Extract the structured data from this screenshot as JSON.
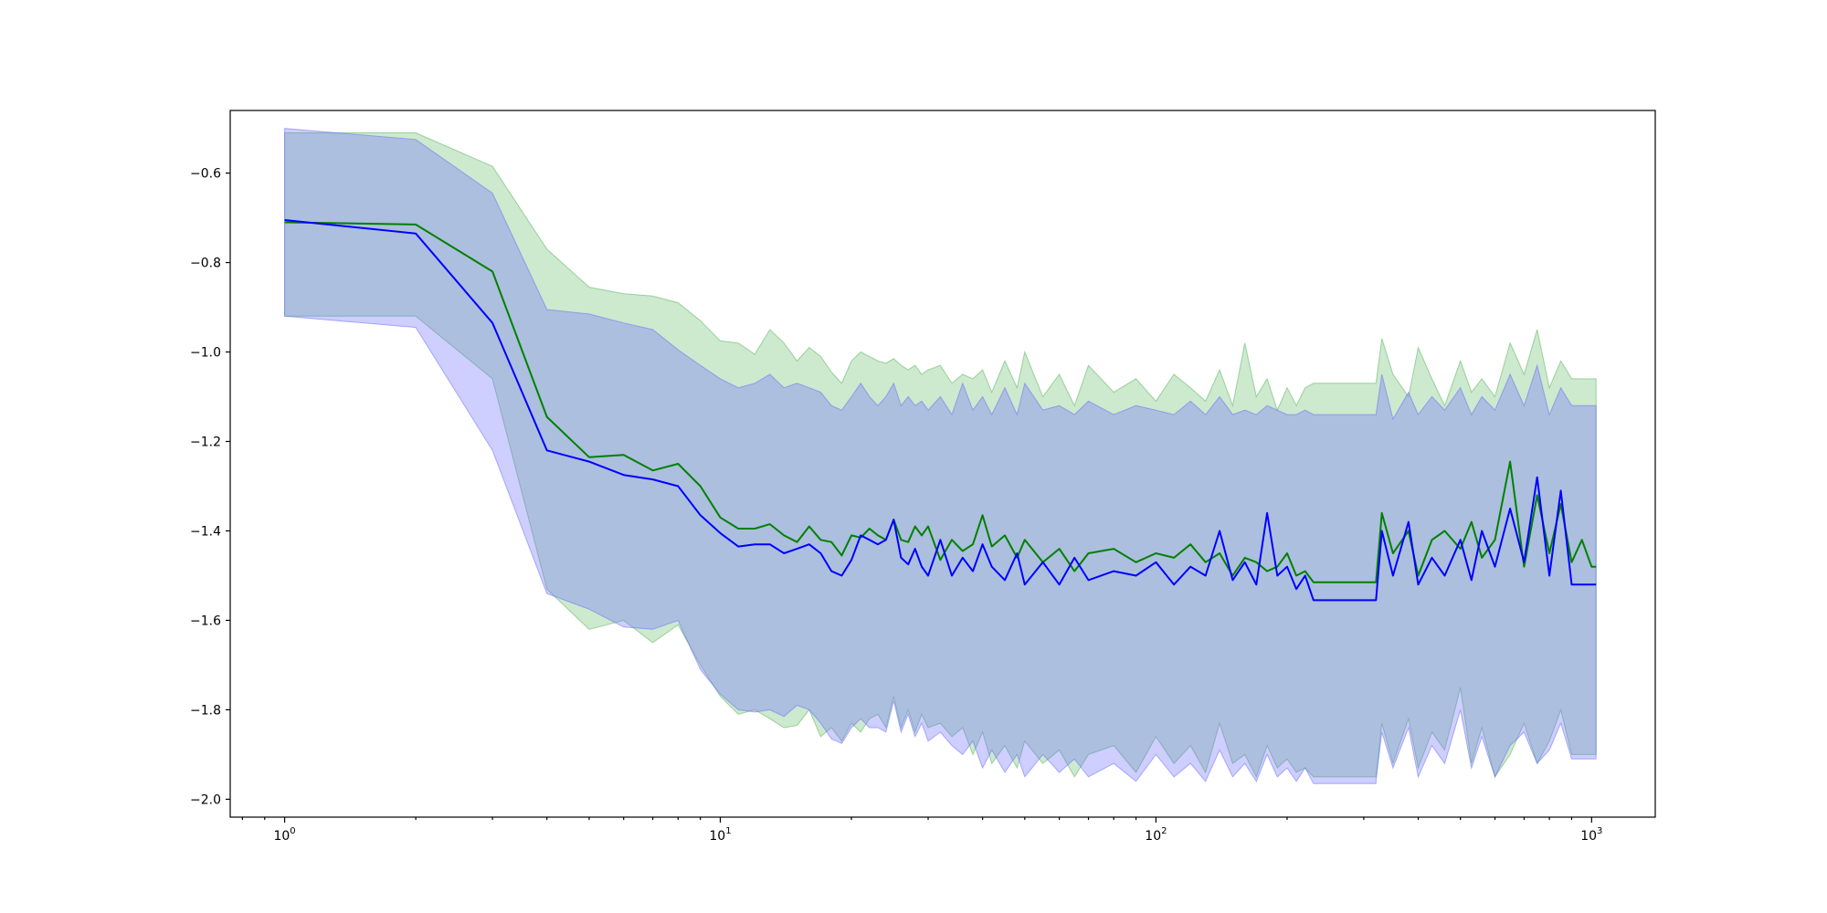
{
  "chart_data": {
    "type": "line",
    "title": "",
    "xlabel": "",
    "ylabel": "",
    "xscale": "log",
    "xlim": [
      0.75,
      1400
    ],
    "ylim": [
      -2.04,
      -0.46
    ],
    "grid": false,
    "legend": "none",
    "x_ticks": [
      {
        "value": 1,
        "base": "10",
        "exp": "0"
      },
      {
        "value": 10,
        "base": "10",
        "exp": "1"
      },
      {
        "value": 100,
        "base": "10",
        "exp": "2"
      },
      {
        "value": 1000,
        "base": "10",
        "exp": "3"
      }
    ],
    "y_ticks": [
      {
        "value": -0.6,
        "label": "−0.6"
      },
      {
        "value": -0.8,
        "label": "−0.8"
      },
      {
        "value": -1.0,
        "label": "−1.0"
      },
      {
        "value": -1.2,
        "label": "−1.2"
      },
      {
        "value": -1.4,
        "label": "−1.4"
      },
      {
        "value": -1.6,
        "label": "−1.6"
      },
      {
        "value": -1.8,
        "label": "−1.8"
      },
      {
        "value": -2.0,
        "label": "−2.0"
      }
    ],
    "series": [
      {
        "color": "#008000",
        "band_color": "#4caf50",
        "band_opacity": 0.28,
        "gap": [
          230,
          320
        ],
        "x": [
          1,
          2,
          3,
          4,
          5,
          6,
          7,
          8,
          9,
          10,
          11,
          12,
          13,
          14,
          15,
          16,
          17,
          18,
          19,
          20,
          21,
          22,
          23,
          24,
          25,
          26,
          27,
          28,
          29,
          30,
          32,
          34,
          36,
          38,
          40,
          42,
          45,
          48,
          50,
          55,
          60,
          65,
          70,
          80,
          90,
          100,
          110,
          120,
          130,
          140,
          150,
          160,
          170,
          180,
          190,
          200,
          210,
          220,
          230,
          320,
          330,
          350,
          380,
          400,
          430,
          460,
          500,
          530,
          560,
          600,
          650,
          700,
          750,
          800,
          850,
          900,
          950,
          1000,
          1024
        ],
        "mean": [
          -0.71,
          -0.715,
          -0.82,
          -1.145,
          -1.235,
          -1.23,
          -1.265,
          -1.25,
          -1.3,
          -1.37,
          -1.395,
          -1.395,
          -1.385,
          -1.41,
          -1.425,
          -1.39,
          -1.42,
          -1.425,
          -1.455,
          -1.41,
          -1.415,
          -1.395,
          -1.41,
          -1.42,
          -1.375,
          -1.42,
          -1.425,
          -1.39,
          -1.41,
          -1.39,
          -1.465,
          -1.42,
          -1.445,
          -1.43,
          -1.365,
          -1.435,
          -1.41,
          -1.46,
          -1.42,
          -1.47,
          -1.44,
          -1.49,
          -1.45,
          -1.44,
          -1.47,
          -1.45,
          -1.46,
          -1.43,
          -1.47,
          -1.45,
          -1.5,
          -1.46,
          -1.47,
          -1.49,
          -1.48,
          -1.45,
          -1.5,
          -1.49,
          -1.515,
          -1.515,
          -1.36,
          -1.45,
          -1.4,
          -1.5,
          -1.42,
          -1.4,
          -1.44,
          -1.38,
          -1.46,
          -1.42,
          -1.245,
          -1.48,
          -1.32,
          -1.45,
          -1.34,
          -1.47,
          -1.42,
          -1.48,
          -1.48
        ],
        "upper": [
          -0.51,
          -0.51,
          -0.585,
          -0.77,
          -0.855,
          -0.87,
          -0.875,
          -0.89,
          -0.93,
          -0.975,
          -0.98,
          -1.005,
          -0.95,
          -0.98,
          -1.02,
          -0.99,
          -1.01,
          -1.045,
          -1.07,
          -1.02,
          -1.0,
          -1.01,
          -1.02,
          -1.025,
          -1.015,
          -1.03,
          -1.04,
          -1.03,
          -1.05,
          -1.04,
          -1.03,
          -1.07,
          -1.05,
          -1.06,
          -1.04,
          -1.09,
          -1.02,
          -1.08,
          -1.0,
          -1.1,
          -1.05,
          -1.12,
          -1.03,
          -1.09,
          -1.06,
          -1.11,
          -1.05,
          -1.08,
          -1.11,
          -1.04,
          -1.12,
          -0.98,
          -1.1,
          -1.06,
          -1.13,
          -1.08,
          -1.12,
          -1.08,
          -1.07,
          -1.07,
          -0.97,
          -1.05,
          -1.1,
          -0.99,
          -1.06,
          -1.12,
          -1.02,
          -1.09,
          -1.06,
          -1.1,
          -0.98,
          -1.05,
          -0.95,
          -1.08,
          -1.02,
          -1.06,
          -1.06,
          -1.06,
          -1.06
        ],
        "lower": [
          -0.92,
          -0.92,
          -1.06,
          -1.53,
          -1.62,
          -1.6,
          -1.65,
          -1.61,
          -1.7,
          -1.77,
          -1.81,
          -1.8,
          -1.82,
          -1.84,
          -1.835,
          -1.8,
          -1.86,
          -1.84,
          -1.87,
          -1.83,
          -1.85,
          -1.82,
          -1.81,
          -1.84,
          -1.77,
          -1.84,
          -1.8,
          -1.85,
          -1.81,
          -1.84,
          -1.83,
          -1.86,
          -1.84,
          -1.9,
          -1.85,
          -1.92,
          -1.88,
          -1.93,
          -1.87,
          -1.92,
          -1.89,
          -1.95,
          -1.9,
          -1.88,
          -1.94,
          -1.86,
          -1.92,
          -1.88,
          -1.94,
          -1.83,
          -1.92,
          -1.9,
          -1.95,
          -1.88,
          -1.93,
          -1.91,
          -1.94,
          -1.93,
          -1.95,
          -1.95,
          -1.83,
          -1.92,
          -1.82,
          -1.93,
          -1.85,
          -1.89,
          -1.75,
          -1.92,
          -1.84,
          -1.95,
          -1.9,
          -1.83,
          -1.92,
          -1.87,
          -1.8,
          -1.9,
          -1.9,
          -1.9,
          -1.9
        ]
      },
      {
        "color": "#0000ff",
        "band_color": "#6666ff",
        "band_opacity": 0.32,
        "gap": [
          230,
          320
        ],
        "x": [
          1,
          2,
          3,
          4,
          5,
          6,
          7,
          8,
          9,
          10,
          11,
          12,
          13,
          14,
          15,
          16,
          17,
          18,
          19,
          20,
          21,
          22,
          23,
          24,
          25,
          26,
          27,
          28,
          29,
          30,
          32,
          34,
          36,
          38,
          40,
          42,
          45,
          48,
          50,
          55,
          60,
          65,
          70,
          80,
          90,
          100,
          110,
          120,
          130,
          140,
          150,
          160,
          170,
          180,
          190,
          200,
          210,
          220,
          230,
          320,
          330,
          350,
          380,
          400,
          430,
          460,
          500,
          530,
          560,
          600,
          650,
          700,
          750,
          800,
          850,
          900,
          950,
          1000,
          1024
        ],
        "mean": [
          -0.705,
          -0.735,
          -0.935,
          -1.22,
          -1.245,
          -1.275,
          -1.285,
          -1.3,
          -1.365,
          -1.405,
          -1.435,
          -1.43,
          -1.43,
          -1.45,
          -1.44,
          -1.43,
          -1.45,
          -1.49,
          -1.5,
          -1.465,
          -1.41,
          -1.42,
          -1.43,
          -1.42,
          -1.375,
          -1.46,
          -1.475,
          -1.44,
          -1.48,
          -1.5,
          -1.42,
          -1.5,
          -1.46,
          -1.49,
          -1.43,
          -1.48,
          -1.51,
          -1.45,
          -1.52,
          -1.47,
          -1.52,
          -1.46,
          -1.51,
          -1.49,
          -1.5,
          -1.47,
          -1.52,
          -1.48,
          -1.5,
          -1.4,
          -1.51,
          -1.47,
          -1.52,
          -1.36,
          -1.5,
          -1.48,
          -1.53,
          -1.5,
          -1.555,
          -1.555,
          -1.4,
          -1.5,
          -1.38,
          -1.52,
          -1.46,
          -1.5,
          -1.42,
          -1.51,
          -1.4,
          -1.48,
          -1.35,
          -1.47,
          -1.28,
          -1.5,
          -1.31,
          -1.52,
          -1.52,
          -1.52,
          -1.52
        ],
        "upper": [
          -0.5,
          -0.525,
          -0.645,
          -0.905,
          -0.915,
          -0.935,
          -0.95,
          -0.995,
          -1.03,
          -1.06,
          -1.08,
          -1.07,
          -1.05,
          -1.08,
          -1.07,
          -1.08,
          -1.09,
          -1.12,
          -1.13,
          -1.1,
          -1.07,
          -1.1,
          -1.12,
          -1.1,
          -1.07,
          -1.12,
          -1.1,
          -1.12,
          -1.11,
          -1.13,
          -1.1,
          -1.14,
          -1.07,
          -1.13,
          -1.1,
          -1.14,
          -1.08,
          -1.14,
          -1.07,
          -1.13,
          -1.12,
          -1.14,
          -1.11,
          -1.14,
          -1.12,
          -1.13,
          -1.14,
          -1.11,
          -1.14,
          -1.1,
          -1.14,
          -1.13,
          -1.14,
          -1.12,
          -1.13,
          -1.14,
          -1.14,
          -1.13,
          -1.14,
          -1.14,
          -1.05,
          -1.15,
          -1.09,
          -1.14,
          -1.1,
          -1.13,
          -1.08,
          -1.14,
          -1.1,
          -1.13,
          -1.05,
          -1.12,
          -1.03,
          -1.14,
          -1.08,
          -1.12,
          -1.12,
          -1.12,
          -1.12
        ],
        "lower": [
          -0.92,
          -0.945,
          -1.22,
          -1.54,
          -1.575,
          -1.615,
          -1.62,
          -1.6,
          -1.71,
          -1.765,
          -1.8,
          -1.805,
          -1.8,
          -1.815,
          -1.79,
          -1.8,
          -1.83,
          -1.865,
          -1.875,
          -1.84,
          -1.82,
          -1.84,
          -1.84,
          -1.85,
          -1.78,
          -1.85,
          -1.81,
          -1.86,
          -1.83,
          -1.87,
          -1.85,
          -1.88,
          -1.9,
          -1.87,
          -1.93,
          -1.89,
          -1.94,
          -1.9,
          -1.95,
          -1.9,
          -1.94,
          -1.91,
          -1.95,
          -1.92,
          -1.96,
          -1.9,
          -1.95,
          -1.92,
          -1.96,
          -1.89,
          -1.95,
          -1.92,
          -1.96,
          -1.9,
          -1.95,
          -1.93,
          -1.96,
          -1.93,
          -1.965,
          -1.96,
          -1.85,
          -1.93,
          -1.84,
          -1.95,
          -1.88,
          -1.92,
          -1.8,
          -1.93,
          -1.86,
          -1.95,
          -1.88,
          -1.85,
          -1.92,
          -1.89,
          -1.83,
          -1.91,
          -1.91,
          -1.91,
          -1.91
        ]
      }
    ]
  }
}
